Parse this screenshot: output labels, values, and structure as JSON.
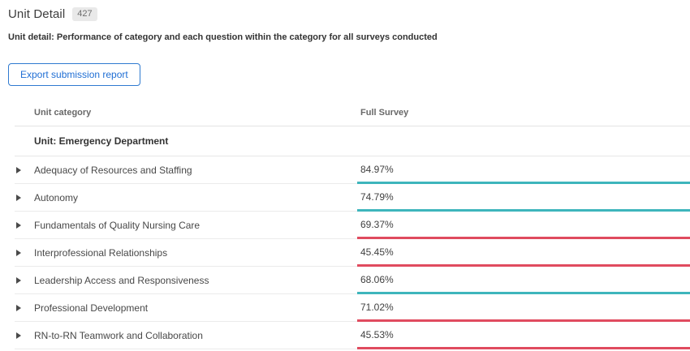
{
  "page": {
    "title": "Unit Detail",
    "badge_count": "427",
    "subtitle": "Unit detail: Performance of category and each question within the category for all surveys conducted"
  },
  "toolbar": {
    "export_button_label": "Export submission report"
  },
  "table": {
    "columns": {
      "category": "Unit category",
      "value": "Full Survey"
    },
    "group_header": "Unit: Emergency Department",
    "rows": [
      {
        "category": "Adequacy of Resources and Staffing",
        "value": "84.97%",
        "status": "positive"
      },
      {
        "category": "Autonomy",
        "value": "74.79%",
        "status": "positive"
      },
      {
        "category": "Fundamentals of Quality Nursing Care",
        "value": "69.37%",
        "status": "negative"
      },
      {
        "category": "Interprofessional Relationships",
        "value": "45.45%",
        "status": "negative"
      },
      {
        "category": "Leadership Access and Responsiveness",
        "value": "68.06%",
        "status": "positive"
      },
      {
        "category": "Professional Development",
        "value": "71.02%",
        "status": "negative"
      },
      {
        "category": "RN-to-RN Teamwork and Collaboration",
        "value": "45.53%",
        "status": "negative"
      }
    ]
  },
  "colors": {
    "positive": "#3eb5bc",
    "negative": "#e04b5f",
    "button_blue": "#1f6ed4"
  }
}
